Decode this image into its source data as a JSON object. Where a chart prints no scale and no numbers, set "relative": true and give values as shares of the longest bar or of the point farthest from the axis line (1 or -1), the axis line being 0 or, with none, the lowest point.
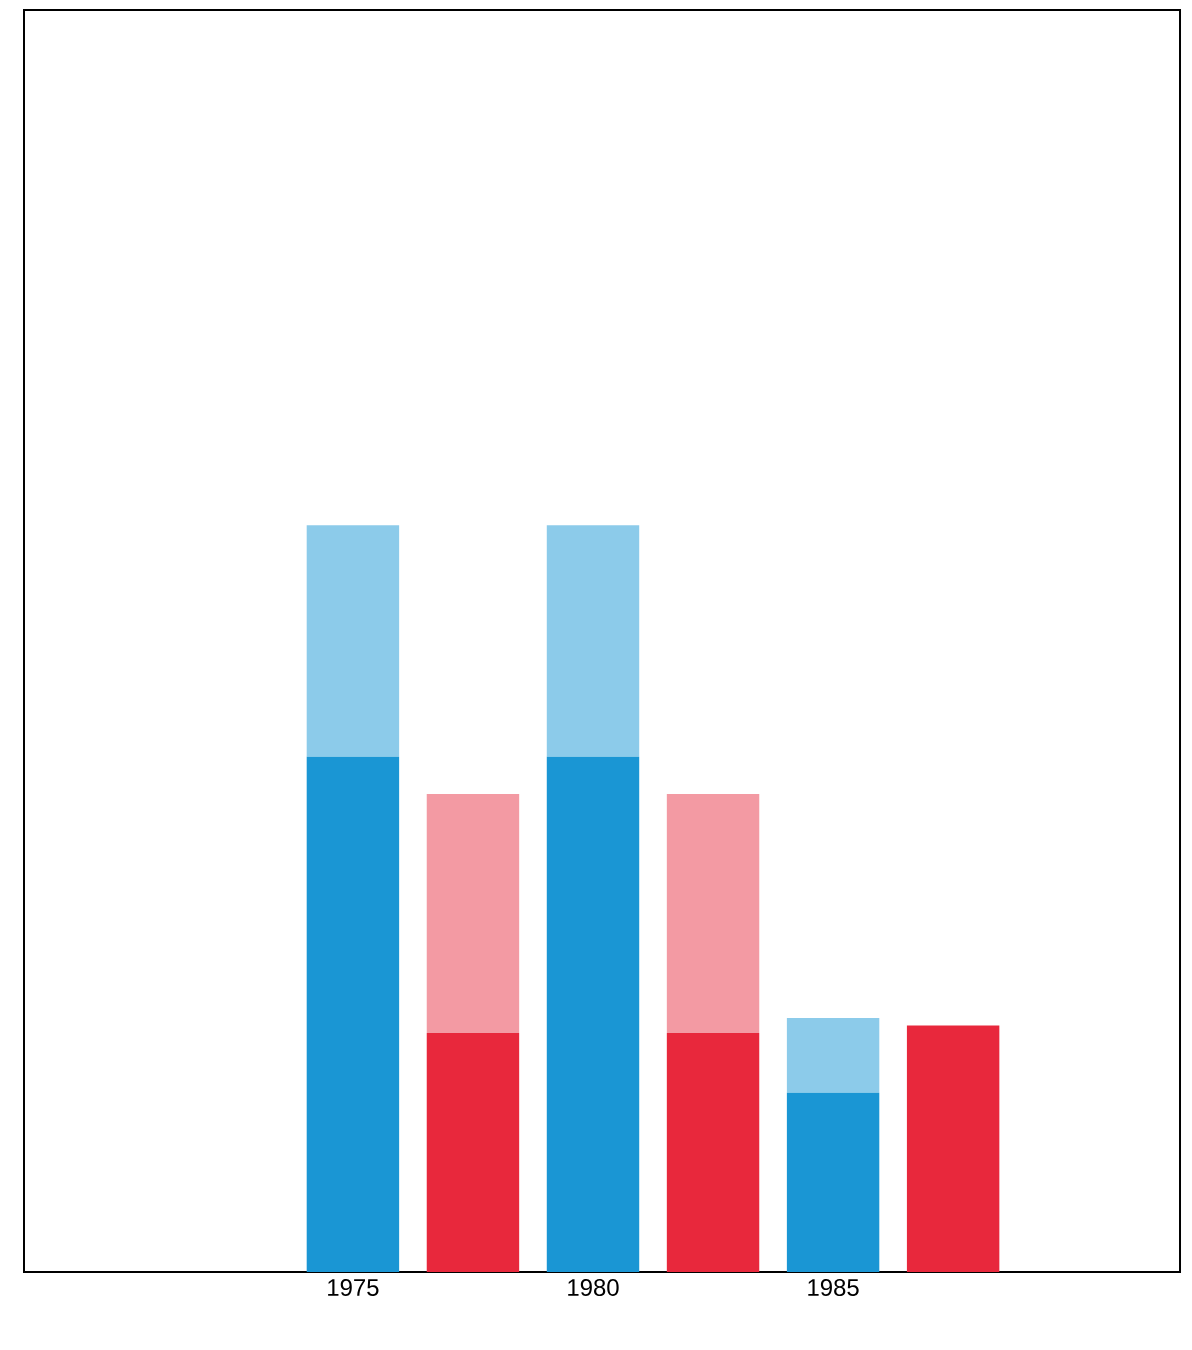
{
  "chart_data": {
    "type": "bar",
    "stacked": true,
    "relative": true,
    "categories": [
      "1975",
      null,
      "1980",
      null,
      "1985",
      null
    ],
    "series": [
      {
        "values": [
          0.69,
          0.32,
          0.69,
          0.32,
          0.24,
          0.33
        ],
        "colors": [
          "#1a96d4",
          "#e8283c",
          "#1a96d4",
          "#e8283c",
          "#1a96d4",
          "#e8283c"
        ]
      },
      {
        "values": [
          0.31,
          0.32,
          0.31,
          0.32,
          0.1,
          null
        ],
        "colors": [
          "#8ccbea",
          "#f39aa3",
          "#8ccbea",
          "#f39aa3",
          "#8ccbea",
          "#f39aa3"
        ]
      }
    ]
  }
}
